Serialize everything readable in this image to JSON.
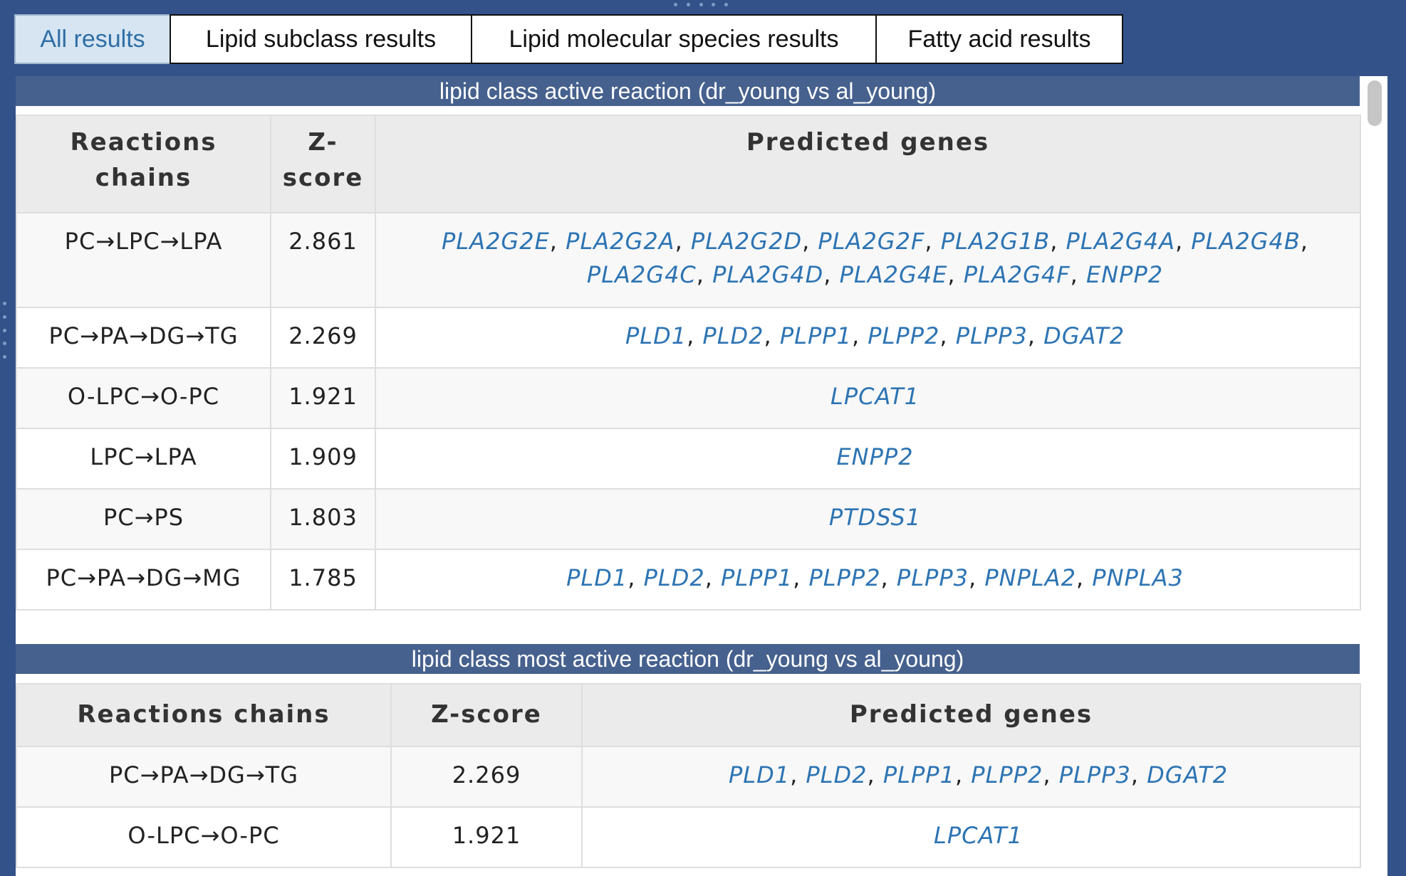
{
  "tabs": [
    {
      "label": "All results",
      "active": true
    },
    {
      "label": "Lipid subclass results",
      "active": false
    },
    {
      "label": "Lipid molecular species results",
      "active": false
    },
    {
      "label": "Fatty acid results",
      "active": false
    }
  ],
  "colors": {
    "background": "#34528a",
    "section_header": "#46618e",
    "gene_link": "#2d74b3",
    "active_tab_bg": "#d6e5f1"
  },
  "sections": [
    {
      "title": "lipid class active reaction (dr_young vs al_young)",
      "headers": [
        "Reactions chains",
        "Z-score",
        "Predicted genes"
      ],
      "rows": [
        {
          "chain": "PC→LPC→LPA",
          "z": "2.861",
          "genes": [
            "PLA2G2E",
            "PLA2G2A",
            "PLA2G2D",
            "PLA2G2F",
            "PLA2G1B",
            "PLA2G4A",
            "PLA2G4B",
            "PLA2G4C",
            "PLA2G4D",
            "PLA2G4E",
            "PLA2G4F",
            "ENPP2"
          ]
        },
        {
          "chain": "PC→PA→DG→TG",
          "z": "2.269",
          "genes": [
            "PLD1",
            "PLD2",
            "PLPP1",
            "PLPP2",
            "PLPP3",
            "DGAT2"
          ]
        },
        {
          "chain": "O-LPC→O-PC",
          "z": "1.921",
          "genes": [
            "LPCAT1"
          ]
        },
        {
          "chain": "LPC→LPA",
          "z": "1.909",
          "genes": [
            "ENPP2"
          ]
        },
        {
          "chain": "PC→PS",
          "z": "1.803",
          "genes": [
            "PTDSS1"
          ]
        },
        {
          "chain": "PC→PA→DG→MG",
          "z": "1.785",
          "genes": [
            "PLD1",
            "PLD2",
            "PLPP1",
            "PLPP2",
            "PLPP3",
            "PNPLA2",
            "PNPLA3"
          ]
        }
      ]
    },
    {
      "title": "lipid class most active reaction (dr_young vs al_young)",
      "headers": [
        "Reactions chains",
        "Z-score",
        "Predicted genes"
      ],
      "rows": [
        {
          "chain": "PC→PA→DG→TG",
          "z": "2.269",
          "genes": [
            "PLD1",
            "PLD2",
            "PLPP1",
            "PLPP2",
            "PLPP3",
            "DGAT2"
          ]
        },
        {
          "chain": "O-LPC→O-PC",
          "z": "1.921",
          "genes": [
            "LPCAT1"
          ]
        }
      ]
    }
  ]
}
